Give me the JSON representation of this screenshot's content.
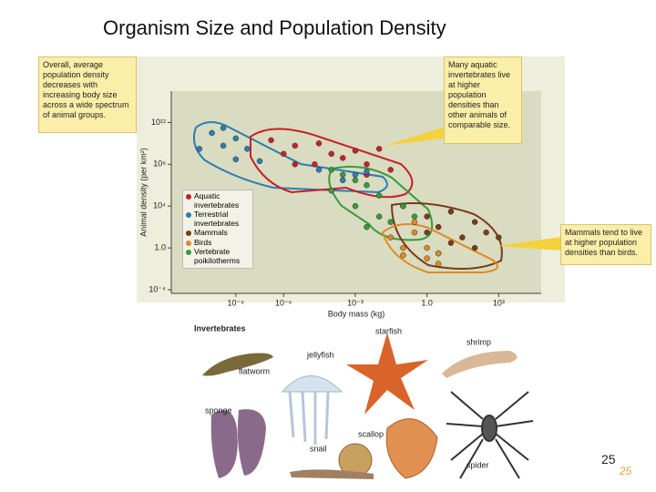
{
  "title": "Organism Size and Population Density",
  "page_number": 25,
  "callouts": [
    "Overall, average population density decreases with increasing body size across a wide spectrum of animal groups.",
    "Many aquatic invertebrates live at higher population densities than other animals of comparable size.",
    "Mammals tend to live at higher population densities than birds."
  ],
  "illustrations": {
    "heading": "Invertebrates",
    "labels": [
      "flatworm",
      "jellyfish",
      "starfish",
      "shrimp",
      "sponge",
      "scallop",
      "snail",
      "spider"
    ]
  },
  "chart_data": {
    "type": "scatter",
    "xlabel": "Body mass (kg)",
    "ylabel": "Animal density (per km²)",
    "log_x": true,
    "log_y": true,
    "xlim": [
      2e-11,
      60000.0
    ],
    "ylim": [
      0.0001,
      1000000000000000.0
    ],
    "xticks": [
      {
        "value": 1e-08,
        "label": "10⁻⁸"
      },
      {
        "value": 1e-06,
        "label": "10⁻⁶"
      },
      {
        "value": 0.001,
        "label": "10⁻³"
      },
      {
        "value": 1,
        "label": "1.0"
      },
      {
        "value": 1000,
        "label": "10³"
      }
    ],
    "yticks": [
      {
        "value": 1000000000000.0,
        "label": "10¹²"
      },
      {
        "value": 100000000.0,
        "label": "10⁸"
      },
      {
        "value": 10000.0,
        "label": "10⁴"
      },
      {
        "value": 1,
        "label": "1.0"
      },
      {
        "value": 0.0001,
        "label": "10⁻⁴"
      }
    ],
    "series": [
      {
        "name": "Aquatic invertebrates",
        "color": "#c8202a",
        "x": [
          3e-07,
          3e-06,
          1e-06,
          3e-05,
          0.0001,
          3e-06,
          2e-05,
          0.0003,
          0.001,
          0.003,
          0.03,
          0.003,
          0.01
        ],
        "values": [
          20000000000.0,
          6000000000.0,
          1000000000.0,
          10000000000.0,
          1000000000.0,
          100000000.0,
          100000000.0,
          400000000.0,
          2000000000.0,
          100000000.0,
          30000000.0,
          10000000.0,
          3000000000.0
        ]
      },
      {
        "name": "Terrestrial invertebrates",
        "color": "#2a7fb0",
        "x": [
          1e-09,
          3e-09,
          1e-08,
          3e-10,
          3e-09,
          3e-08,
          1e-08,
          1e-07,
          3e-05,
          0.0003,
          0.001,
          0.003
        ],
        "values": [
          100000000000.0,
          300000000000.0,
          30000000000.0,
          3000000000.0,
          6000000000.0,
          3000000000.0,
          300000000.0,
          200000000.0,
          30000000.0,
          3000000.0,
          10000000.0,
          20000000.0
        ]
      },
      {
        "name": "Mammals",
        "color": "#7a3a1a",
        "x": [
          0.1,
          1,
          3,
          10,
          30,
          100,
          300,
          1000,
          10,
          1,
          100,
          3
        ],
        "values": [
          10000.0,
          1000,
          100,
          3000,
          10,
          300,
          30,
          10,
          3,
          30,
          1,
          0.3
        ]
      },
      {
        "name": "Birds",
        "color": "#e08a20",
        "x": [
          0.03,
          0.1,
          0.3,
          1,
          3,
          1,
          0.1,
          3,
          0.3
        ],
        "values": [
          10,
          1,
          30,
          1,
          0.3,
          0.1,
          0.2,
          0.03,
          300
        ]
      },
      {
        "name": "Vertebrate poikilotherms",
        "color": "#3a9a3a",
        "x": [
          0.0001,
          0.0003,
          0.001,
          0.0001,
          0.003,
          0.01,
          0.001,
          0.01,
          0.03,
          0.1,
          0.3,
          0.003
        ],
        "values": [
          30000000.0,
          10000000.0,
          3000000.0,
          300000.0,
          1000000.0,
          100000.0,
          10000.0,
          1000,
          300,
          10000.0,
          1000,
          100
        ]
      }
    ]
  }
}
